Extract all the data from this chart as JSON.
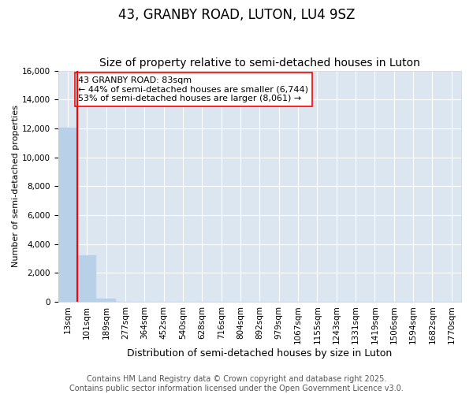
{
  "title": "43, GRANBY ROAD, LUTON, LU4 9SZ",
  "subtitle": "Size of property relative to semi-detached houses in Luton",
  "xlabel": "Distribution of semi-detached houses by size in Luton",
  "ylabel": "Number of semi-detached properties",
  "categories": [
    "13sqm",
    "101sqm",
    "189sqm",
    "277sqm",
    "364sqm",
    "452sqm",
    "540sqm",
    "628sqm",
    "716sqm",
    "804sqm",
    "892sqm",
    "979sqm",
    "1067sqm",
    "1155sqm",
    "1243sqm",
    "1331sqm",
    "1419sqm",
    "1506sqm",
    "1594sqm",
    "1682sqm",
    "1770sqm"
  ],
  "bar_values": [
    12050,
    3200,
    210,
    15,
    5,
    2,
    1,
    1,
    0,
    0,
    0,
    0,
    0,
    0,
    0,
    0,
    0,
    0,
    0,
    0,
    0
  ],
  "property_bin_index": 0,
  "bar_color": "#b8d0e8",
  "bar_edge_color": "#b8d0e8",
  "property_line_color": "red",
  "annotation_text": "43 GRANBY ROAD: 83sqm\n← 44% of semi-detached houses are smaller (6,744)\n53% of semi-detached houses are larger (8,061) →",
  "annotation_box_color": "white",
  "annotation_box_edge_color": "red",
  "ylim": [
    0,
    16000
  ],
  "yticks": [
    0,
    2000,
    4000,
    6000,
    8000,
    10000,
    12000,
    14000,
    16000
  ],
  "background_color": "#dce6f1",
  "grid_color": "white",
  "footer_text": "Contains HM Land Registry data © Crown copyright and database right 2025.\nContains public sector information licensed under the Open Government Licence v3.0.",
  "title_fontsize": 12,
  "subtitle_fontsize": 10,
  "ylabel_fontsize": 8,
  "xlabel_fontsize": 9,
  "tick_fontsize": 7.5,
  "footer_fontsize": 7,
  "annotation_fontsize": 8
}
